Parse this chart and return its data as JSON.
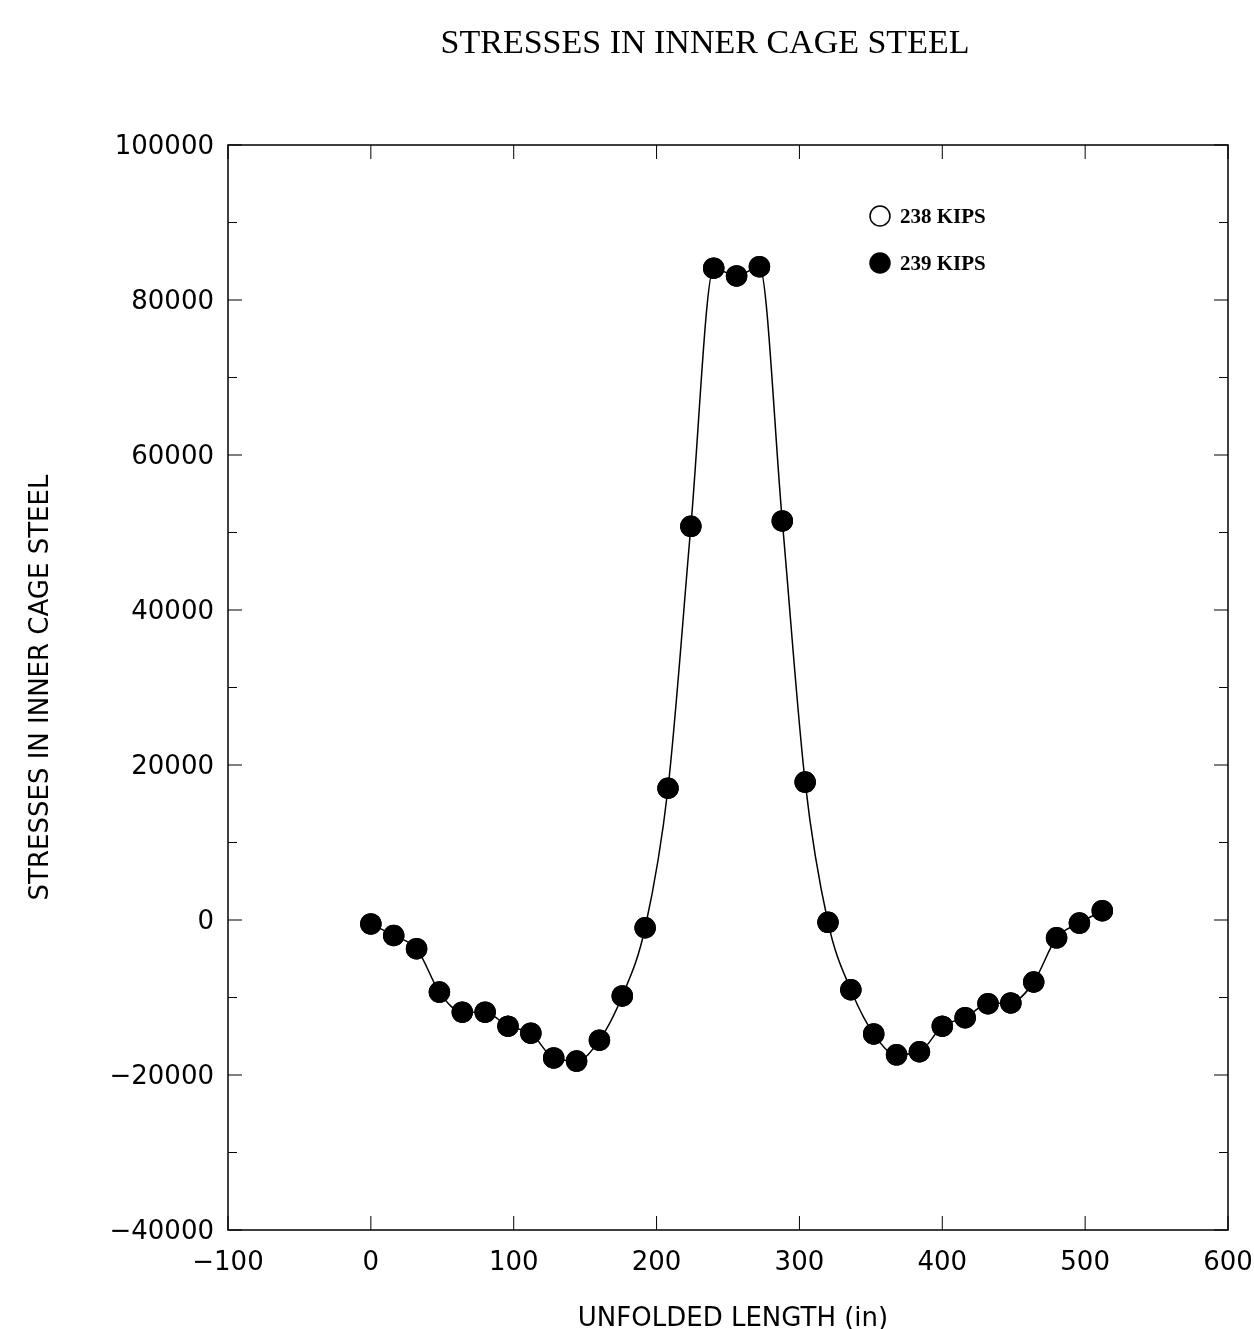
{
  "chart_data": {
    "type": "line",
    "title": "STRESSES IN INNER CAGE STEEL",
    "xlabel": "UNFOLDED LENGTH (in)",
    "ylabel": "STRESSES IN INNER CAGE STEEL",
    "xlim": [
      -100,
      600
    ],
    "ylim": [
      -40000,
      100000
    ],
    "xticks": [
      {
        "value": -100,
        "label": "−100"
      },
      0,
      100,
      200,
      300,
      400,
      500,
      600
    ],
    "yticks": [
      {
        "value": -40000,
        "label": "−40000"
      },
      {
        "value": -30000,
        "label": null
      },
      {
        "value": -20000,
        "label": "−20000"
      },
      {
        "value": -10000,
        "label": null
      },
      0,
      {
        "value": 10000,
        "label": null
      },
      20000,
      {
        "value": 30000,
        "label": null
      },
      40000,
      {
        "value": 50000,
        "label": null
      },
      60000,
      {
        "value": 70000,
        "label": null
      },
      80000,
      {
        "value": 90000,
        "label": null
      },
      100000
    ],
    "x": [
      0,
      16,
      32,
      48,
      64,
      80,
      96,
      112,
      128,
      144,
      160,
      176,
      192,
      208,
      224,
      240,
      256,
      272,
      288,
      304,
      320,
      336,
      352,
      368,
      384,
      400,
      416,
      432,
      448,
      464,
      480,
      496,
      512
    ],
    "legend": "top right",
    "grid": false,
    "series": [
      {
        "name": "238 KIPS",
        "type": "scatter",
        "marker": "circle",
        "color": "#000000",
        "values": [
          -500,
          -2000,
          -3700,
          -9300,
          -11900,
          -11900,
          -13700,
          -14600,
          -17800,
          -18200,
          -15500,
          -9800,
          -1000,
          17000,
          50800,
          84100,
          83100,
          84300,
          51500,
          17800,
          -300,
          -9000,
          -14700,
          -17400,
          -17000,
          -13700,
          -12600,
          -10800,
          -10700,
          -8000,
          -2300,
          -400,
          1200
        ]
      },
      {
        "name": "239 KIPS",
        "marker": "circle",
        "line_style": "solid",
        "color": "#000000",
        "values": [
          -500,
          -2000,
          -3700,
          -9300,
          -11900,
          -11900,
          -13700,
          -14600,
          -17800,
          -18200,
          -15500,
          -9800,
          -1000,
          17000,
          50800,
          84100,
          83100,
          84300,
          51500,
          17800,
          -300,
          -9000,
          -14700,
          -17400,
          -17000,
          -13700,
          -12600,
          -10800,
          -10700,
          -8000,
          -2300,
          -400,
          1200
        ]
      }
    ]
  }
}
